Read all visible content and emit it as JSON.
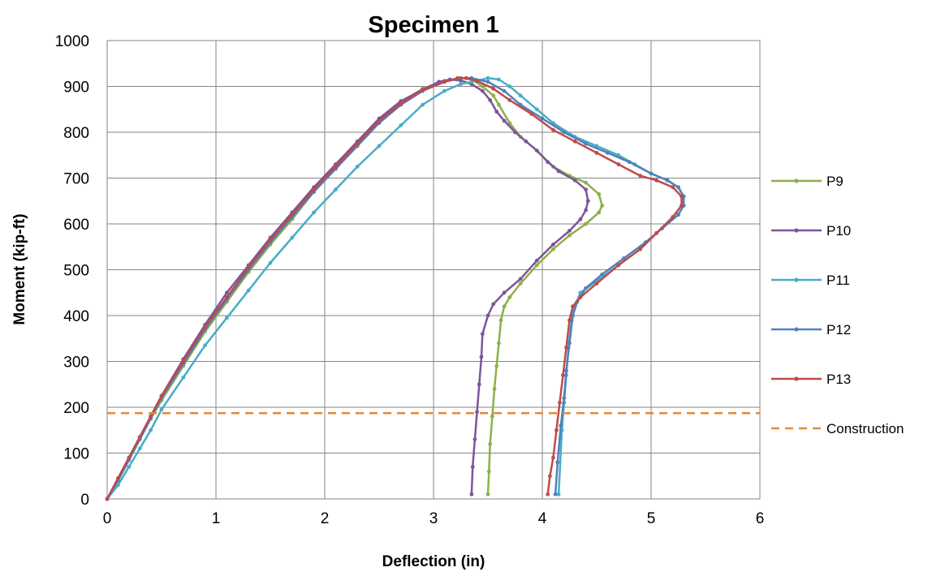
{
  "chart_data": {
    "type": "line",
    "title": "Specimen 1",
    "xlabel": "Deflection (in)",
    "ylabel": "Moment (kip-ft)",
    "xlim": [
      0,
      6
    ],
    "ylim": [
      0,
      1000
    ],
    "xticks": [
      0,
      1,
      2,
      3,
      4,
      5,
      6
    ],
    "yticks": [
      0,
      100,
      200,
      300,
      400,
      500,
      600,
      700,
      800,
      900,
      1000
    ],
    "grid": true,
    "legend_position": "right",
    "series": [
      {
        "name": "P9",
        "color": "#8db04b",
        "marker": true,
        "x": [
          0,
          0.1,
          0.2,
          0.3,
          0.4,
          0.5,
          0.7,
          0.9,
          1.1,
          1.3,
          1.5,
          1.7,
          1.9,
          2.1,
          2.3,
          2.5,
          2.7,
          2.9,
          3.1,
          3.25,
          3.35,
          3.45,
          3.55,
          3.6,
          3.7,
          3.8,
          3.95,
          4.1,
          4.25,
          4.4,
          4.52,
          4.55,
          4.52,
          4.4,
          4.25,
          4.1,
          3.95,
          3.8,
          3.7,
          3.65,
          3.62,
          3.6,
          3.58,
          3.56,
          3.54,
          3.52,
          3.51,
          3.5
        ],
        "y": [
          0,
          40,
          85,
          130,
          175,
          215,
          290,
          365,
          430,
          495,
          555,
          610,
          670,
          720,
          775,
          825,
          865,
          895,
          912,
          918,
          915,
          900,
          880,
          860,
          820,
          790,
          760,
          725,
          705,
          690,
          665,
          640,
          625,
          600,
          575,
          545,
          510,
          470,
          440,
          420,
          390,
          340,
          290,
          240,
          180,
          120,
          60,
          10
        ]
      },
      {
        "name": "P10",
        "color": "#7b559c",
        "marker": true,
        "x": [
          0,
          0.1,
          0.2,
          0.3,
          0.4,
          0.5,
          0.7,
          0.9,
          1.1,
          1.3,
          1.5,
          1.7,
          1.9,
          2.1,
          2.3,
          2.5,
          2.7,
          2.9,
          3.05,
          3.15,
          3.25,
          3.35,
          3.45,
          3.52,
          3.58,
          3.65,
          3.75,
          3.85,
          3.95,
          4.05,
          4.15,
          4.3,
          4.4,
          4.42,
          4.4,
          4.35,
          4.25,
          4.1,
          3.95,
          3.8,
          3.65,
          3.55,
          3.5,
          3.45,
          3.44,
          3.42,
          3.4,
          3.38,
          3.36,
          3.35
        ],
        "y": [
          0,
          45,
          90,
          135,
          180,
          225,
          305,
          380,
          450,
          510,
          570,
          625,
          680,
          730,
          780,
          830,
          868,
          893,
          910,
          915,
          913,
          905,
          890,
          870,
          845,
          825,
          800,
          780,
          760,
          735,
          715,
          695,
          675,
          650,
          630,
          610,
          585,
          555,
          520,
          480,
          450,
          425,
          400,
          360,
          310,
          250,
          190,
          130,
          70,
          10
        ]
      },
      {
        "name": "P11",
        "color": "#4aacc6",
        "marker": true,
        "x": [
          0,
          0.1,
          0.2,
          0.3,
          0.4,
          0.5,
          0.7,
          0.9,
          1.1,
          1.3,
          1.5,
          1.7,
          1.9,
          2.1,
          2.3,
          2.5,
          2.7,
          2.9,
          3.1,
          3.25,
          3.35,
          3.5,
          3.6,
          3.7,
          3.8,
          3.95,
          4.1,
          4.3,
          4.5,
          4.7,
          4.85,
          5.0,
          5.15,
          5.25,
          5.3,
          5.28,
          5.2,
          5.05,
          4.9,
          4.7,
          4.5,
          4.35,
          4.3,
          4.27,
          4.24,
          4.22,
          4.2,
          4.18,
          4.15
        ],
        "y": [
          0,
          30,
          70,
          110,
          150,
          195,
          265,
          335,
          395,
          455,
          515,
          570,
          625,
          675,
          725,
          770,
          815,
          860,
          890,
          905,
          910,
          918,
          915,
          900,
          880,
          850,
          820,
          790,
          770,
          750,
          730,
          710,
          695,
          680,
          660,
          640,
          615,
          580,
          545,
          510,
          475,
          450,
          420,
          390,
          330,
          270,
          210,
          150,
          10
        ]
      },
      {
        "name": "P12",
        "color": "#4f81bd",
        "marker": true,
        "x": [
          0,
          0.1,
          0.2,
          0.3,
          0.4,
          0.5,
          0.7,
          0.9,
          1.1,
          1.3,
          1.5,
          1.7,
          1.9,
          2.1,
          2.3,
          2.5,
          2.7,
          2.9,
          3.1,
          3.25,
          3.35,
          3.5,
          3.65,
          3.8,
          4.0,
          4.2,
          4.4,
          4.6,
          4.8,
          5.0,
          5.15,
          5.25,
          5.3,
          5.3,
          5.25,
          5.1,
          4.95,
          4.75,
          4.55,
          4.4,
          4.32,
          4.28,
          4.25,
          4.22,
          4.2,
          4.17,
          4.14,
          4.12
        ],
        "y": [
          0,
          40,
          85,
          130,
          175,
          220,
          295,
          370,
          435,
          500,
          560,
          615,
          670,
          720,
          770,
          820,
          860,
          890,
          910,
          918,
          918,
          910,
          890,
          860,
          830,
          800,
          775,
          755,
          735,
          710,
          695,
          680,
          660,
          640,
          620,
          590,
          560,
          525,
          490,
          460,
          430,
          400,
          340,
          280,
          220,
          160,
          80,
          10
        ]
      },
      {
        "name": "P13",
        "color": "#be4b48",
        "marker": true,
        "x": [
          0,
          0.1,
          0.2,
          0.3,
          0.4,
          0.5,
          0.7,
          0.9,
          1.1,
          1.3,
          1.5,
          1.7,
          1.9,
          2.1,
          2.3,
          2.5,
          2.7,
          2.9,
          3.1,
          3.22,
          3.3,
          3.4,
          3.55,
          3.7,
          3.9,
          4.1,
          4.3,
          4.5,
          4.7,
          4.9,
          5.05,
          5.2,
          5.28,
          5.28,
          5.2,
          5.05,
          4.9,
          4.7,
          4.5,
          4.35,
          4.28,
          4.25,
          4.22,
          4.19,
          4.16,
          4.13,
          4.1,
          4.07,
          4.05
        ],
        "y": [
          0,
          45,
          90,
          135,
          180,
          225,
          300,
          375,
          440,
          505,
          565,
          620,
          675,
          725,
          775,
          825,
          862,
          892,
          910,
          918,
          918,
          912,
          895,
          870,
          840,
          805,
          780,
          755,
          730,
          705,
          695,
          680,
          660,
          640,
          615,
          580,
          545,
          510,
          470,
          440,
          420,
          390,
          330,
          270,
          210,
          150,
          90,
          50,
          10
        ]
      },
      {
        "name": "Construction",
        "color": "#e48a3a",
        "marker": false,
        "dashed": true,
        "x": [
          0,
          6
        ],
        "y": [
          187,
          187
        ]
      }
    ]
  }
}
